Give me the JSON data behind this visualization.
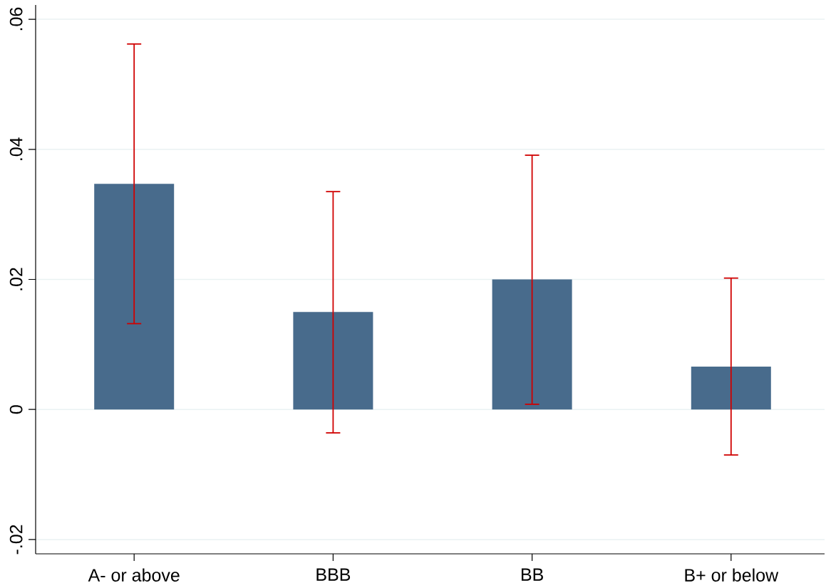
{
  "chart_data": {
    "type": "bar",
    "categories": [
      "A- or above",
      "BBB",
      "BB",
      "B+ or below"
    ],
    "values": [
      0.0347,
      0.015,
      0.02,
      0.0066
    ],
    "errors": [
      [
        0.0132,
        0.0562
      ],
      [
        -0.0036,
        0.0335
      ],
      [
        0.0008,
        0.0391
      ],
      [
        -0.007,
        0.0202
      ]
    ],
    "color": "#486b8c",
    "ylim": [
      -0.0222,
      0.0622
    ],
    "yticks": [
      {
        "value": -0.02,
        "label": "-.02"
      },
      {
        "value": 0,
        "label": "0"
      },
      {
        "value": 0.02,
        "label": ".02"
      },
      {
        "value": 0.04,
        "label": ".04"
      },
      {
        "value": 0.06,
        "label": ".06"
      }
    ],
    "grid": "y"
  }
}
